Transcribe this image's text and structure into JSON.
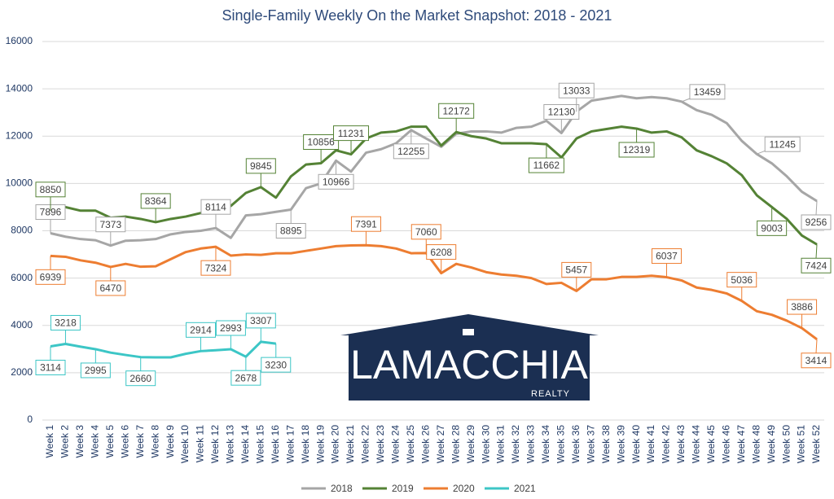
{
  "chart_data": {
    "type": "line",
    "title": "Single-Family Weekly On the Market Snapshot: 2018 - 2021",
    "categories": [
      "Week 1",
      "Week 2",
      "Week 3",
      "Week 4",
      "Week 5",
      "Week 6",
      "Week 7",
      "Week 8",
      "Week 9",
      "Week 10",
      "Week 11",
      "Week 12",
      "Week 13",
      "Week 14",
      "Week 15",
      "Week 16",
      "Week 17",
      "Week 18",
      "Week 19",
      "Week 20",
      "Week 21",
      "Week 22",
      "Week 23",
      "Week 24",
      "Week 25",
      "Week 26",
      "Week 27",
      "Week 28",
      "Week 29",
      "Week 30",
      "Week 31",
      "Week 32",
      "Week 33",
      "Week 34",
      "Week 35",
      "Week 36",
      "Week 37",
      "Week 38",
      "Week 39",
      "Week 40",
      "Week 41",
      "Week 42",
      "Week 43",
      "Week 44",
      "Week 45",
      "Week 46",
      "Week 47",
      "Week 48",
      "Week 49",
      "Week 50",
      "Week 51",
      "Week 52"
    ],
    "series": [
      {
        "name": "2018",
        "color": "#a6a6a6",
        "values": [
          7896,
          7750,
          7650,
          7600,
          7373,
          7580,
          7600,
          7650,
          7850,
          7950,
          8000,
          8114,
          7700,
          8650,
          8700,
          8800,
          8895,
          9800,
          10000,
          10966,
          10500,
          11300,
          11450,
          11700,
          12255,
          11900,
          11550,
          12100,
          12200,
          12200,
          12150,
          12350,
          12400,
          12650,
          12130,
          13033,
          13500,
          13600,
          13700,
          13600,
          13650,
          13600,
          13459,
          13100,
          12900,
          12550,
          11800,
          11245,
          10850,
          10300,
          9650,
          9256
        ],
        "labeled": [
          0,
          4,
          11,
          16,
          19,
          24,
          34,
          35,
          42,
          47,
          51
        ]
      },
      {
        "name": "2019",
        "color": "#548235",
        "values": [
          8850,
          9000,
          8850,
          8850,
          8550,
          8600,
          8500,
          8364,
          8500,
          8600,
          8750,
          8850,
          9050,
          9600,
          9845,
          9400,
          10300,
          10800,
          10856,
          11400,
          11231,
          11900,
          12150,
          12200,
          12400,
          12400,
          11600,
          12172,
          12000,
          11900,
          11700,
          11700,
          11700,
          11662,
          11100,
          11900,
          12200,
          12300,
          12400,
          12319,
          12150,
          12200,
          11950,
          11400,
          11150,
          10850,
          10350,
          9500,
          9003,
          8500,
          7800,
          7424
        ],
        "labeled": [
          0,
          7,
          14,
          18,
          20,
          27,
          33,
          39,
          48,
          51
        ]
      },
      {
        "name": "2020",
        "color": "#ed7d31",
        "values": [
          6939,
          6900,
          6750,
          6650,
          6470,
          6600,
          6480,
          6500,
          6800,
          7100,
          7250,
          7324,
          6950,
          7000,
          6980,
          7050,
          7050,
          7150,
          7250,
          7350,
          7380,
          7391,
          7350,
          7250,
          7050,
          7060,
          6208,
          6600,
          6450,
          6250,
          6150,
          6100,
          6000,
          5750,
          5800,
          5457,
          5950,
          5950,
          6050,
          6050,
          6100,
          6037,
          5900,
          5600,
          5500,
          5350,
          5036,
          4600,
          4450,
          4200,
          3886,
          3414
        ],
        "labeled": [
          0,
          4,
          11,
          21,
          25,
          26,
          35,
          41,
          46,
          50,
          51
        ]
      },
      {
        "name": "2021",
        "color": "#3cc6c6",
        "values": [
          3114,
          3218,
          3100,
          2995,
          2850,
          2750,
          2660,
          2650,
          2650,
          2800,
          2914,
          2950,
          2993,
          2678,
          3307,
          3230,
          null,
          null,
          null,
          null,
          null,
          null,
          null,
          null,
          null,
          null,
          null,
          null,
          null,
          null,
          null,
          null,
          null,
          null,
          null,
          null,
          null,
          null,
          null,
          null,
          null,
          null,
          null,
          null,
          null,
          null,
          null,
          null,
          null,
          null,
          null,
          null
        ],
        "labeled": [
          0,
          1,
          3,
          6,
          10,
          12,
          13,
          14,
          15
        ]
      }
    ],
    "ylim": [
      0,
      16000
    ],
    "yticks": [
      0,
      2000,
      4000,
      6000,
      8000,
      10000,
      12000,
      14000,
      16000
    ],
    "grid": true,
    "legend": "bottom",
    "logo": {
      "name": "LAMACCHIA",
      "tagline": "REALTY"
    }
  }
}
